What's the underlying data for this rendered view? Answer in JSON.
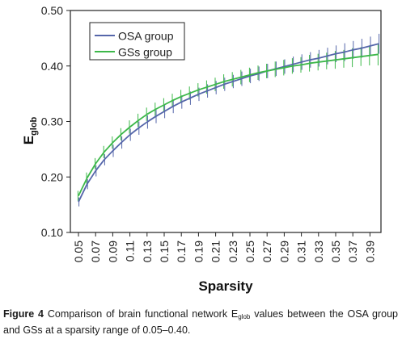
{
  "chart_data": {
    "type": "line",
    "xlabel": "Sparsity",
    "ylabel": {
      "main": "E",
      "sub": "glob"
    },
    "ylim": [
      0.1,
      0.5
    ],
    "yticks": [
      "0.10",
      "0.20",
      "0.30",
      "0.40",
      "0.50"
    ],
    "x": [
      "0.05",
      "0.06",
      "0.07",
      "0.08",
      "0.09",
      "0.10",
      "0.11",
      "0.12",
      "0.13",
      "0.14",
      "0.15",
      "0.16",
      "0.17",
      "0.18",
      "0.19",
      "0.20",
      "0.21",
      "0.22",
      "0.23",
      "0.24",
      "0.25",
      "0.26",
      "0.27",
      "0.28",
      "0.29",
      "0.30",
      "0.31",
      "0.32",
      "0.33",
      "0.34",
      "0.35",
      "0.36",
      "0.37",
      "0.38",
      "0.39",
      "0.40"
    ],
    "xtick_labels": [
      "0.05",
      "0.07",
      "0.09",
      "0.11",
      "0.13",
      "0.15",
      "0.17",
      "0.19",
      "0.21",
      "0.23",
      "0.25",
      "0.27",
      "0.29",
      "0.31",
      "0.33",
      "0.35",
      "0.37",
      "0.39"
    ],
    "grid": false,
    "legend_position": "top-left",
    "series": [
      {
        "name": "OSA group",
        "color": "#5566aa",
        "values": [
          0.155,
          0.187,
          0.211,
          0.231,
          0.247,
          0.262,
          0.276,
          0.288,
          0.299,
          0.309,
          0.318,
          0.327,
          0.335,
          0.342,
          0.349,
          0.355,
          0.361,
          0.367,
          0.372,
          0.377,
          0.382,
          0.386,
          0.391,
          0.395,
          0.399,
          0.403,
          0.407,
          0.411,
          0.414,
          0.418,
          0.422,
          0.425,
          0.429,
          0.432,
          0.436,
          0.44
        ],
        "error": [
          0.008,
          0.009,
          0.01,
          0.01,
          0.011,
          0.011,
          0.011,
          0.012,
          0.012,
          0.012,
          0.012,
          0.012,
          0.012,
          0.012,
          0.012,
          0.012,
          0.012,
          0.012,
          0.012,
          0.013,
          0.013,
          0.013,
          0.013,
          0.013,
          0.013,
          0.014,
          0.014,
          0.014,
          0.015,
          0.015,
          0.015,
          0.016,
          0.016,
          0.017,
          0.017,
          0.018
        ]
      },
      {
        "name": "GSs group",
        "color": "#3db84a",
        "values": [
          0.166,
          0.198,
          0.224,
          0.245,
          0.262,
          0.277,
          0.29,
          0.302,
          0.313,
          0.322,
          0.33,
          0.338,
          0.345,
          0.351,
          0.357,
          0.362,
          0.367,
          0.372,
          0.376,
          0.38,
          0.384,
          0.388,
          0.391,
          0.394,
          0.397,
          0.4,
          0.402,
          0.405,
          0.407,
          0.409,
          0.411,
          0.413,
          0.415,
          0.417,
          0.419,
          0.421
        ],
        "error": [
          0.009,
          0.01,
          0.01,
          0.011,
          0.011,
          0.011,
          0.012,
          0.012,
          0.012,
          0.012,
          0.012,
          0.012,
          0.012,
          0.012,
          0.012,
          0.012,
          0.012,
          0.013,
          0.013,
          0.013,
          0.013,
          0.013,
          0.013,
          0.014,
          0.014,
          0.014,
          0.014,
          0.015,
          0.015,
          0.015,
          0.016,
          0.016,
          0.017,
          0.017,
          0.018,
          0.02
        ]
      }
    ]
  },
  "caption": {
    "label": "Figure 4",
    "text_before": " Comparison of brain functional network E",
    "sub": "glob",
    "text_after": " values between the OSA group and GSs at a sparsity range of 0.05–0.40."
  }
}
